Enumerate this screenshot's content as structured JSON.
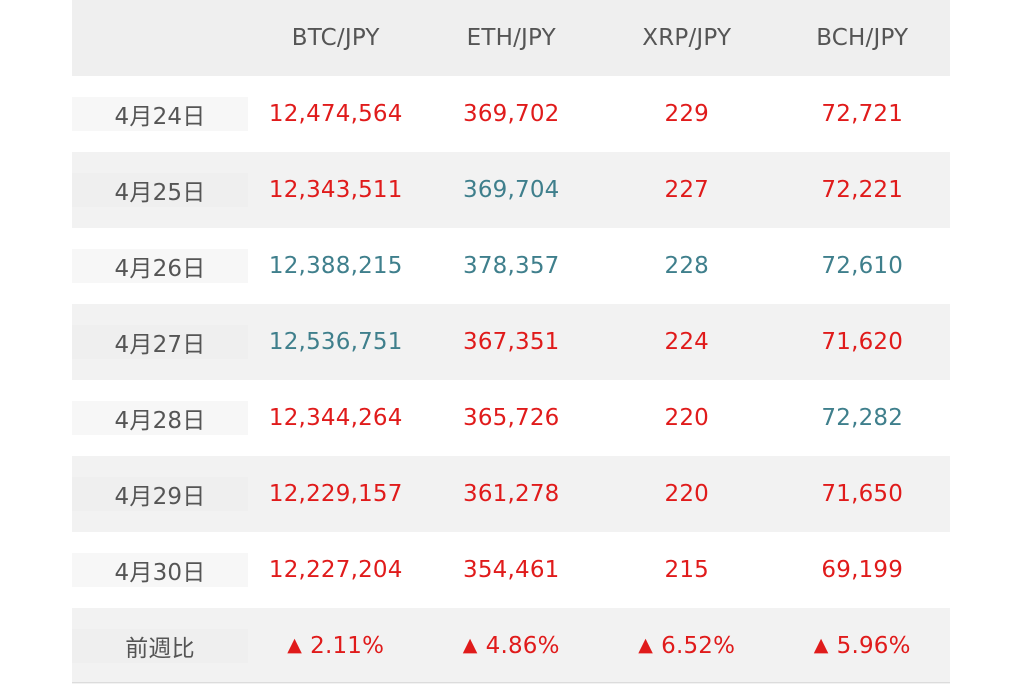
{
  "header": {
    "corner": "",
    "columns": [
      "BTC/JPY",
      "ETH/JPY",
      "XRP/JPY",
      "BCH/JPY"
    ]
  },
  "rows": [
    {
      "date": "4月24日",
      "values": [
        "12,474,564",
        "369,702",
        "229",
        "72,721"
      ],
      "trend": [
        "down",
        "down",
        "down",
        "down"
      ]
    },
    {
      "date": "4月25日",
      "values": [
        "12,343,511",
        "369,704",
        "227",
        "72,221"
      ],
      "trend": [
        "down",
        "up",
        "down",
        "down"
      ]
    },
    {
      "date": "4月26日",
      "values": [
        "12,388,215",
        "378,357",
        "228",
        "72,610"
      ],
      "trend": [
        "up",
        "up",
        "up",
        "up"
      ]
    },
    {
      "date": "4月27日",
      "values": [
        "12,536,751",
        "367,351",
        "224",
        "71,620"
      ],
      "trend": [
        "up",
        "down",
        "down",
        "down"
      ]
    },
    {
      "date": "4月28日",
      "values": [
        "12,344,264",
        "365,726",
        "220",
        "72,282"
      ],
      "trend": [
        "down",
        "down",
        "down",
        "up"
      ]
    },
    {
      "date": "4月29日",
      "values": [
        "12,229,157",
        "361,278",
        "220",
        "71,650"
      ],
      "trend": [
        "down",
        "down",
        "down",
        "down"
      ]
    },
    {
      "date": "4月30日",
      "values": [
        "12,227,204",
        "354,461",
        "215",
        "69,199"
      ],
      "trend": [
        "down",
        "down",
        "down",
        "down"
      ]
    }
  ],
  "summary": {
    "label": "前週比",
    "marker": "▲",
    "values": [
      "2.11%",
      "4.86%",
      "6.52%",
      "5.96%"
    ]
  },
  "colors": {
    "down": "#e01b1b",
    "up": "#3f7f8c",
    "label": "#555555"
  }
}
